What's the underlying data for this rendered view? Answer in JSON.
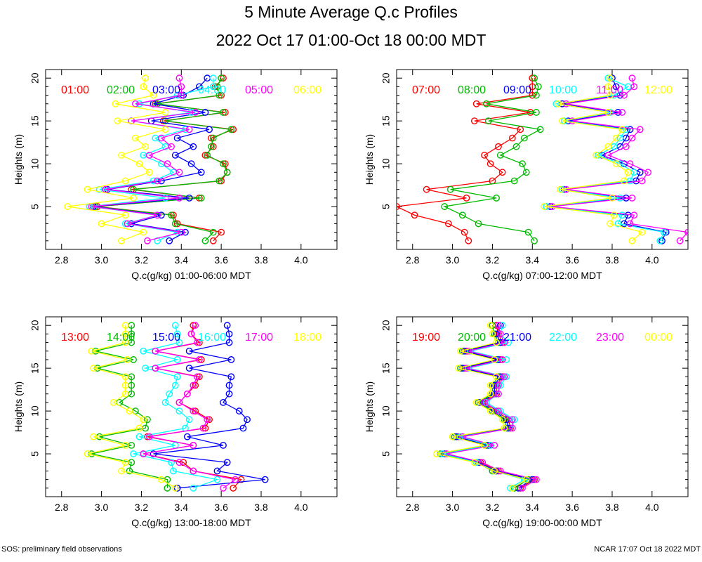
{
  "header": {
    "title": "5 Minute Average Q.c Profiles",
    "subtitle": "2022 Oct 17 01:00-Oct 18 00:00 MDT"
  },
  "footer": {
    "left": "SOS: preliminary field observations",
    "right": "NCAR 17:07 Oct 18 2022 MDT"
  },
  "colors": [
    "#ff0000",
    "#00bb00",
    "#0000ff",
    "#00ffff",
    "#ff00ff",
    "#ffff00"
  ],
  "chart_data": [
    {
      "type": "line",
      "xlabel": "Q.c(g/kg) 01:00-06:00 MDT",
      "ylabel": "Heights (m)",
      "xlim": [
        2.72,
        4.18
      ],
      "ylim": [
        0,
        21
      ],
      "xticks": [
        2.8,
        3.0,
        3.2,
        3.4,
        3.6,
        3.8,
        4.0
      ],
      "xtick_labels": [
        "2.8",
        "3.0",
        "3.2",
        "3.4",
        "3.6",
        "3.8",
        "4.0"
      ],
      "yticks": [
        5,
        10,
        15,
        20
      ],
      "ytick_labels": [
        "5",
        "10",
        "15",
        "20"
      ],
      "heights": [
        1,
        2,
        3,
        4,
        5,
        6,
        7,
        8,
        9,
        10,
        11,
        12,
        13,
        14,
        15,
        16,
        17,
        18,
        19,
        20
      ],
      "series": [
        {
          "name": "01:00",
          "values": [
            3.56,
            3.6,
            3.38,
            3.36,
            2.98,
            3.49,
            3.15,
            3.6,
            3.63,
            3.62,
            3.52,
            3.56,
            3.55,
            3.66,
            3.31,
            3.62,
            3.27,
            3.6,
            3.57,
            3.61
          ]
        },
        {
          "name": "02:00",
          "values": [
            3.52,
            3.56,
            3.37,
            3.35,
            2.97,
            3.5,
            3.16,
            3.59,
            3.63,
            3.61,
            3.53,
            3.55,
            3.56,
            3.65,
            3.32,
            3.61,
            3.28,
            3.59,
            3.58,
            3.6
          ]
        },
        {
          "name": "03:00",
          "values": [
            3.34,
            3.42,
            3.15,
            3.3,
            2.96,
            3.44,
            3.03,
            3.3,
            3.5,
            3.45,
            3.37,
            3.46,
            3.38,
            3.54,
            3.25,
            3.52,
            3.26,
            3.41,
            3.49,
            3.53
          ]
        },
        {
          "name": "04:00",
          "values": [
            3.28,
            3.38,
            3.12,
            3.28,
            2.94,
            3.32,
            2.99,
            3.26,
            3.36,
            3.3,
            3.21,
            3.32,
            3.27,
            3.42,
            3.15,
            3.45,
            3.19,
            3.38,
            3.56,
            3.56
          ]
        },
        {
          "name": "05:00",
          "values": [
            3.23,
            3.4,
            3.13,
            3.28,
            2.95,
            3.39,
            3.02,
            3.28,
            3.39,
            3.33,
            3.24,
            3.35,
            3.3,
            3.44,
            3.15,
            3.47,
            3.17,
            3.4,
            3.4,
            3.39
          ]
        },
        {
          "name": "06:00",
          "values": [
            3.1,
            3.21,
            3.0,
            3.12,
            2.83,
            3.16,
            2.93,
            3.12,
            3.24,
            3.19,
            3.1,
            3.22,
            3.17,
            3.32,
            3.08,
            3.32,
            3.07,
            3.26,
            3.21,
            3.22
          ]
        }
      ]
    },
    {
      "type": "line",
      "xlabel": "Q.c(g/kg) 07:00-12:00 MDT",
      "ylabel": "Heights (m)",
      "xlim": [
        2.72,
        4.18
      ],
      "ylim": [
        0,
        21
      ],
      "xticks": [
        2.8,
        3.0,
        3.2,
        3.4,
        3.6,
        3.8,
        4.0
      ],
      "xtick_labels": [
        "2.8",
        "3.0",
        "3.2",
        "3.4",
        "3.6",
        "3.8",
        "4.0"
      ],
      "yticks": [
        5,
        10,
        15,
        20
      ],
      "ytick_labels": [
        "5",
        "10",
        "15",
        "20"
      ],
      "heights": [
        1,
        2,
        3,
        4,
        5,
        6,
        7,
        8,
        9,
        10,
        11,
        12,
        13,
        14,
        15,
        16,
        17,
        18,
        19,
        20
      ],
      "series": [
        {
          "name": "07:00",
          "values": [
            3.08,
            3.06,
            2.98,
            2.81,
            2.72,
            3.07,
            2.87,
            3.2,
            3.25,
            3.19,
            3.16,
            3.23,
            3.3,
            3.34,
            3.11,
            3.39,
            3.12,
            3.4,
            3.4,
            3.4
          ]
        },
        {
          "name": "08:00",
          "values": [
            3.41,
            3.38,
            3.13,
            3.05,
            2.96,
            3.22,
            2.99,
            3.31,
            3.37,
            3.35,
            3.24,
            3.32,
            3.36,
            3.44,
            3.18,
            3.42,
            3.17,
            3.42,
            3.43,
            3.41
          ]
        },
        {
          "name": "09:00",
          "values": [
            4.05,
            4.07,
            3.86,
            3.88,
            3.49,
            3.87,
            3.56,
            3.92,
            3.94,
            3.86,
            3.75,
            3.84,
            3.87,
            3.89,
            3.58,
            3.83,
            3.55,
            3.84,
            3.82,
            3.8
          ]
        },
        {
          "name": "10:00",
          "values": [
            4.04,
            4.06,
            3.83,
            3.85,
            3.47,
            3.84,
            3.55,
            3.89,
            3.91,
            3.84,
            3.73,
            3.81,
            3.84,
            3.87,
            3.56,
            3.79,
            3.52,
            3.81,
            3.88,
            3.78
          ]
        },
        {
          "name": "11:00",
          "values": [
            4.14,
            4.18,
            3.89,
            3.91,
            3.5,
            3.9,
            3.57,
            3.95,
            3.98,
            3.89,
            3.78,
            3.87,
            3.9,
            3.94,
            3.6,
            3.85,
            3.57,
            3.86,
            3.91,
            3.9
          ]
        },
        {
          "name": "12:00",
          "values": [
            3.9,
            3.95,
            3.79,
            3.81,
            3.46,
            3.8,
            3.54,
            3.86,
            3.88,
            3.82,
            3.72,
            3.78,
            3.82,
            3.85,
            3.55,
            3.78,
            3.53,
            3.79,
            3.78,
            3.79
          ]
        }
      ]
    },
    {
      "type": "line",
      "xlabel": "Q.c(g/kg) 13:00-18:00 MDT",
      "ylabel": "Heights (m)",
      "xlim": [
        2.72,
        4.18
      ],
      "ylim": [
        0,
        21
      ],
      "xticks": [
        2.8,
        3.0,
        3.2,
        3.4,
        3.6,
        3.8,
        4.0
      ],
      "xtick_labels": [
        "2.8",
        "3.0",
        "3.2",
        "3.4",
        "3.6",
        "3.8",
        "4.0"
      ],
      "yticks": [
        5,
        10,
        15,
        20
      ],
      "ytick_labels": [
        "5",
        "10",
        "15",
        "20"
      ],
      "heights": [
        1,
        2,
        3,
        4,
        5,
        6,
        7,
        8,
        9,
        10,
        11,
        12,
        13,
        14,
        15,
        16,
        17,
        18,
        19,
        20
      ],
      "series": [
        {
          "name": "13:00",
          "values": [
            3.66,
            3.7,
            3.46,
            3.41,
            3.21,
            3.46,
            3.23,
            3.52,
            3.54,
            3.47,
            3.39,
            3.43,
            3.47,
            3.49,
            3.27,
            3.5,
            3.27,
            3.49,
            3.45,
            3.46
          ]
        },
        {
          "name": "14:00",
          "values": [
            3.33,
            3.33,
            3.14,
            3.15,
            2.95,
            3.15,
            2.99,
            3.22,
            3.23,
            3.17,
            3.09,
            3.15,
            3.15,
            3.15,
            2.98,
            3.16,
            2.97,
            3.15,
            3.15,
            3.15
          ]
        },
        {
          "name": "15:00",
          "values": [
            3.38,
            3.82,
            3.58,
            3.63,
            3.26,
            3.61,
            3.43,
            3.71,
            3.73,
            3.69,
            3.61,
            3.64,
            3.64,
            3.65,
            3.44,
            3.65,
            3.44,
            3.64,
            3.64,
            3.63
          ]
        },
        {
          "name": "16:00",
          "values": [
            3.46,
            3.58,
            3.36,
            3.35,
            3.16,
            3.37,
            3.19,
            3.42,
            3.44,
            3.39,
            3.32,
            3.34,
            3.37,
            3.38,
            3.22,
            3.38,
            3.21,
            3.39,
            3.38,
            3.37
          ]
        },
        {
          "name": "17:00",
          "values": [
            3.61,
            3.67,
            3.46,
            3.39,
            3.21,
            3.46,
            3.24,
            3.51,
            3.53,
            3.46,
            3.39,
            3.43,
            3.46,
            3.48,
            3.27,
            3.49,
            3.27,
            3.48,
            3.45,
            3.47
          ]
        },
        {
          "name": "18:00",
          "values": [
            3.37,
            3.3,
            3.1,
            3.12,
            2.93,
            3.12,
            2.96,
            3.19,
            3.21,
            3.14,
            3.06,
            3.12,
            3.12,
            3.12,
            2.96,
            3.13,
            2.95,
            3.12,
            3.12,
            3.12
          ]
        }
      ]
    },
    {
      "type": "line",
      "xlabel": "Q.c(g/kg) 19:00-00:00 MDT",
      "ylabel": "Heights (m)",
      "xlim": [
        2.72,
        4.18
      ],
      "ylim": [
        0,
        21
      ],
      "xticks": [
        2.8,
        3.0,
        3.2,
        3.4,
        3.6,
        3.8,
        4.0
      ],
      "xtick_labels": [
        "2.8",
        "3.0",
        "3.2",
        "3.4",
        "3.6",
        "3.8",
        "4.0"
      ],
      "yticks": [
        5,
        10,
        15,
        20
      ],
      "ytick_labels": [
        "5",
        "10",
        "15",
        "20"
      ],
      "heights": [
        1,
        2,
        3,
        4,
        5,
        6,
        7,
        8,
        9,
        10,
        11,
        12,
        13,
        14,
        15,
        16,
        17,
        18,
        19,
        20
      ],
      "series": [
        {
          "name": "19:00",
          "values": [
            3.34,
            3.41,
            3.23,
            3.14,
            2.97,
            3.19,
            3.03,
            3.29,
            3.28,
            3.22,
            3.15,
            3.22,
            3.22,
            3.25,
            3.06,
            3.24,
            3.07,
            3.25,
            3.23,
            3.22
          ]
        },
        {
          "name": "20:00",
          "values": [
            3.31,
            3.38,
            3.2,
            3.12,
            2.94,
            3.17,
            3.01,
            3.27,
            3.26,
            3.2,
            3.13,
            3.2,
            3.2,
            3.23,
            3.04,
            3.22,
            3.05,
            3.23,
            3.21,
            3.2
          ]
        },
        {
          "name": "21:00",
          "values": [
            3.33,
            3.4,
            3.22,
            3.13,
            2.96,
            3.18,
            3.02,
            3.28,
            3.27,
            3.21,
            3.14,
            3.21,
            3.21,
            3.24,
            3.05,
            3.23,
            3.06,
            3.24,
            3.22,
            3.24
          ]
        },
        {
          "name": "22:00",
          "values": [
            3.29,
            3.36,
            3.21,
            3.12,
            2.95,
            3.19,
            3.04,
            3.3,
            3.31,
            3.24,
            3.17,
            3.23,
            3.24,
            3.27,
            3.08,
            3.27,
            3.09,
            3.28,
            3.24,
            3.25
          ]
        },
        {
          "name": "23:00",
          "values": [
            3.35,
            3.42,
            3.24,
            3.15,
            2.97,
            3.21,
            3.05,
            3.3,
            3.3,
            3.23,
            3.16,
            3.23,
            3.23,
            3.26,
            3.07,
            3.25,
            3.08,
            3.26,
            3.24,
            3.23
          ]
        },
        {
          "name": "00:00",
          "values": [
            3.3,
            3.37,
            3.21,
            3.11,
            2.92,
            3.16,
            3.0,
            3.26,
            3.25,
            3.19,
            3.12,
            3.19,
            3.19,
            3.22,
            3.03,
            3.21,
            3.04,
            3.22,
            3.2,
            3.19
          ]
        }
      ]
    }
  ]
}
